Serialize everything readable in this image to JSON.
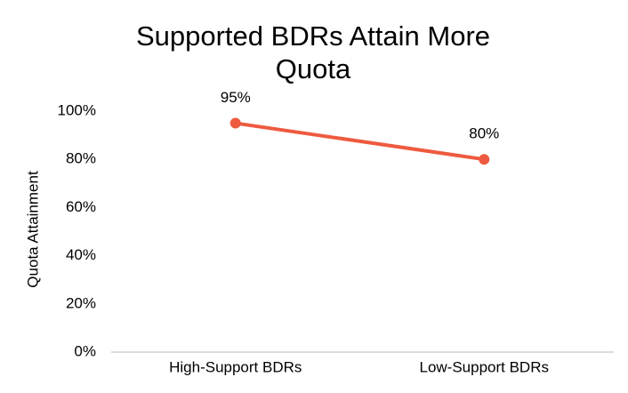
{
  "chart_data": {
    "type": "line",
    "title": "Supported BDRs Attain More Quota",
    "y_label": "Quota Attainment",
    "categories": [
      "High-Support BDRs",
      "Low-Support BDRs"
    ],
    "values": [
      95,
      80
    ],
    "value_labels": [
      "95%",
      "80%"
    ],
    "color": "#ee5a3f",
    "ylim": [
      0,
      100
    ],
    "yticks": [
      {
        "value": 0,
        "label": "0%"
      },
      {
        "value": 20,
        "label": "20%"
      },
      {
        "value": 40,
        "label": "40%"
      },
      {
        "value": 60,
        "label": "60%"
      },
      {
        "value": 80,
        "label": "80%"
      },
      {
        "value": 100,
        "label": "100%"
      }
    ],
    "grid": false
  }
}
